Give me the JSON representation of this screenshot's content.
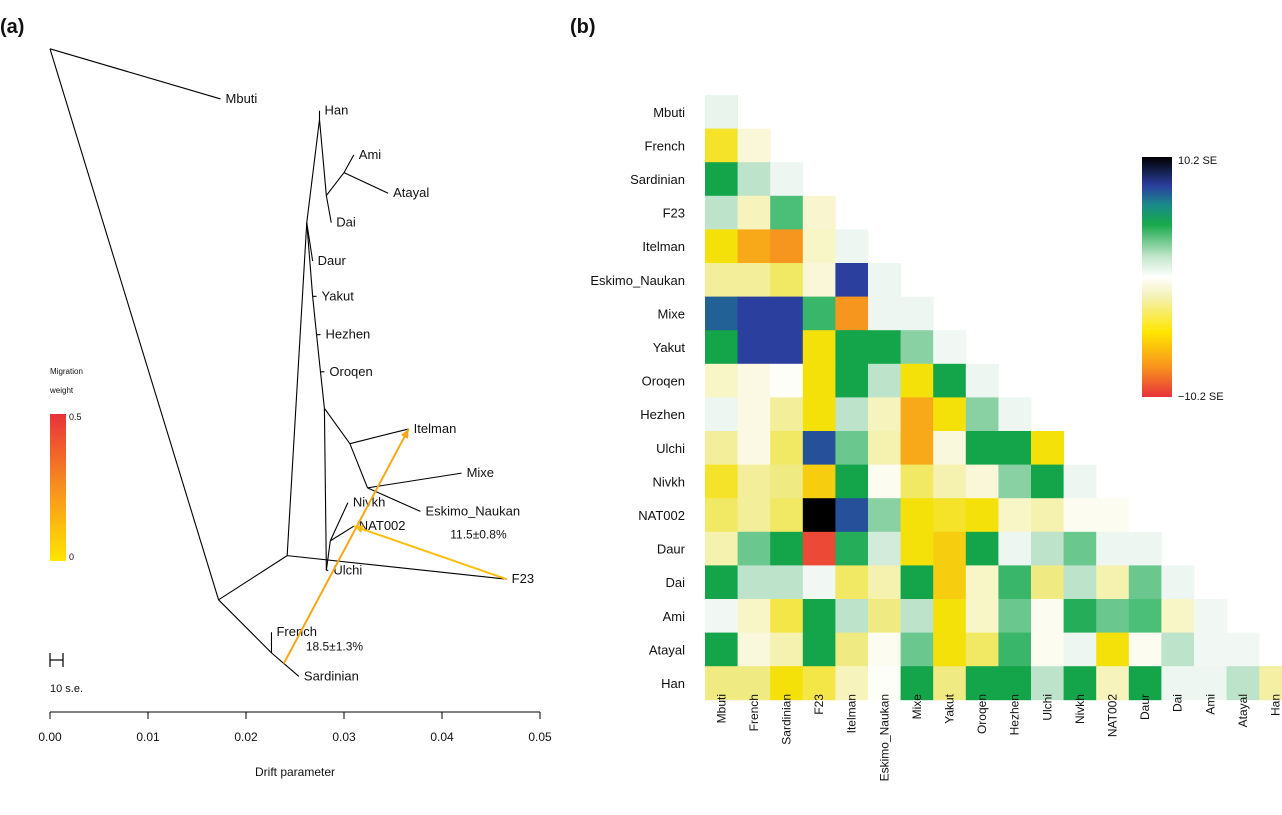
{
  "panels": {
    "a_label": "a",
    "b_label": "b"
  },
  "chart_data": [
    {
      "type": "tree",
      "panel": "a",
      "xlabel": "Drift parameter",
      "xlim": [
        0,
        0.05
      ],
      "xticks": [
        "0.00",
        "0.01",
        "0.02",
        "0.03",
        "0.04",
        "0.05"
      ],
      "scale_bar_label": "10 s.e.",
      "migration_legend": {
        "title_line1": "Migration",
        "title_line2": "weight",
        "max_label": "0.5",
        "min_label": "0",
        "color_low": "#ffe600",
        "color_high": "#e8323a"
      },
      "nodes": [
        {
          "id": "root",
          "x": 0.0,
          "y": 0.945
        },
        {
          "id": "Mbuti",
          "x": 0.0174,
          "y": 0.86,
          "label": "Mbuti"
        },
        {
          "id": "n1",
          "x": 0.0172,
          "y": 0.01
        },
        {
          "id": "nEur",
          "x": 0.0226,
          "y": -0.08
        },
        {
          "id": "French",
          "x": 0.0226,
          "y": -0.045,
          "label": "French"
        },
        {
          "id": "Sardinian",
          "x": 0.0254,
          "y": -0.12,
          "label": "Sardinian"
        },
        {
          "id": "nA",
          "x": 0.0242,
          "y": 0.085
        },
        {
          "id": "F23",
          "x": 0.0466,
          "y": 0.045,
          "label": "F23"
        },
        {
          "id": "nB",
          "x": 0.0262,
          "y": 0.65
        },
        {
          "id": "nEA",
          "x": 0.0275,
          "y": 0.825
        },
        {
          "id": "Han",
          "x": 0.0275,
          "y": 0.84,
          "label": "Han"
        },
        {
          "id": "nDai",
          "x": 0.0282,
          "y": 0.696
        },
        {
          "id": "nAmi",
          "x": 0.03,
          "y": 0.735
        },
        {
          "id": "Ami",
          "x": 0.031,
          "y": 0.765,
          "label": "Ami"
        },
        {
          "id": "Atayal",
          "x": 0.0345,
          "y": 0.7,
          "label": "Atayal"
        },
        {
          "id": "Dai",
          "x": 0.0287,
          "y": 0.65,
          "label": "Dai"
        },
        {
          "id": "Daur",
          "x": 0.0268,
          "y": 0.585,
          "label": "Daur"
        },
        {
          "id": "nC",
          "x": 0.0268,
          "y": 0.525
        },
        {
          "id": "Yakut",
          "x": 0.0272,
          "y": 0.525,
          "label": "Yakut"
        },
        {
          "id": "nD",
          "x": 0.0272,
          "y": 0.46
        },
        {
          "id": "Hezhen",
          "x": 0.0276,
          "y": 0.46,
          "label": "Hezhen"
        },
        {
          "id": "nE",
          "x": 0.0276,
          "y": 0.397
        },
        {
          "id": "Oroqen",
          "x": 0.028,
          "y": 0.397,
          "label": "Oroqen"
        },
        {
          "id": "nF",
          "x": 0.028,
          "y": 0.335
        },
        {
          "id": "nAm",
          "x": 0.0306,
          "y": 0.275
        },
        {
          "id": "Itelman",
          "x": 0.0366,
          "y": 0.3,
          "label": "Itelman"
        },
        {
          "id": "nMixe",
          "x": 0.0324,
          "y": 0.2
        },
        {
          "id": "Mixe",
          "x": 0.042,
          "y": 0.225,
          "label": "Mixe"
        },
        {
          "id": "Eskimo_Naukan",
          "x": 0.0378,
          "y": 0.16,
          "label": "Eskimo_Naukan"
        },
        {
          "id": "nG",
          "x": 0.0282,
          "y": 0.06
        },
        {
          "id": "Ulchi",
          "x": 0.0284,
          "y": 0.06,
          "label": "Ulchi"
        },
        {
          "id": "nH",
          "x": 0.0286,
          "y": 0.11
        },
        {
          "id": "Nivkh",
          "x": 0.0304,
          "y": 0.175,
          "label": "Nivkh"
        },
        {
          "id": "NAT002",
          "x": 0.031,
          "y": 0.135,
          "label": "NAT002"
        }
      ],
      "edges": [
        [
          "root",
          "Mbuti"
        ],
        [
          "root",
          "n1"
        ],
        [
          "n1",
          "nEur"
        ],
        [
          "nEur",
          "French"
        ],
        [
          "nEur",
          "Sardinian"
        ],
        [
          "n1",
          "nA"
        ],
        [
          "nA",
          "F23"
        ],
        [
          "nA",
          "nB"
        ],
        [
          "nB",
          "nEA"
        ],
        [
          "nEA",
          "Han"
        ],
        [
          "nEA",
          "nDai"
        ],
        [
          "nDai",
          "nAmi"
        ],
        [
          "nAmi",
          "Ami"
        ],
        [
          "nAmi",
          "Atayal"
        ],
        [
          "nDai",
          "Dai"
        ],
        [
          "nB",
          "Daur"
        ],
        [
          "nB",
          "nC"
        ],
        [
          "nC",
          "Yakut"
        ],
        [
          "nC",
          "nD"
        ],
        [
          "nD",
          "Hezhen"
        ],
        [
          "nD",
          "nE"
        ],
        [
          "nE",
          "Oroqen"
        ],
        [
          "nE",
          "nF"
        ],
        [
          "nF",
          "nAm"
        ],
        [
          "nAm",
          "Itelman"
        ],
        [
          "nAm",
          "nMixe"
        ],
        [
          "nMixe",
          "Mixe"
        ],
        [
          "nMixe",
          "Eskimo_Naukan"
        ],
        [
          "nF",
          "nG"
        ],
        [
          "nG",
          "Ulchi"
        ],
        [
          "nG",
          "nH"
        ],
        [
          "nH",
          "Nivkh"
        ],
        [
          "nH",
          "NAT002"
        ]
      ],
      "migrations": [
        {
          "from": "Sardinian",
          "to": "Itelman",
          "weight": 0.185,
          "label": "18.5±1.3%",
          "from_frac": 0.55,
          "to_frac": 0.0
        },
        {
          "from": "F23",
          "to": "NAT002",
          "weight": 0.115,
          "label": "11.5±0.8%",
          "from_frac": 0.0,
          "to_frac": 0.0
        }
      ]
    },
    {
      "type": "heatmap",
      "panel": "b",
      "populations": [
        "Mbuti",
        "French",
        "Sardinian",
        "F23",
        "Itelman",
        "Eskimo_Naukan",
        "Mixe",
        "Yakut",
        "Oroqen",
        "Hezhen",
        "Ulchi",
        "Nivkh",
        "NAT002",
        "Daur",
        "Dai",
        "Ami",
        "Atayal",
        "Han"
      ],
      "colorbar": {
        "max_label": "10.2 SE",
        "min_label": "−10.2 SE",
        "vmin": -10.2,
        "vmax": 10.2
      },
      "values": [
        [
          0.5
        ],
        [
          -4,
          -0.6
        ],
        [
          5,
          1.5,
          0.4
        ],
        [
          1.5,
          -1.2,
          3.5,
          -0.8
        ],
        [
          -4.5,
          -6,
          -6.5,
          -1,
          0.4
        ],
        [
          -2,
          -2,
          -3,
          -0.6,
          8.5,
          0.4
        ],
        [
          7.5,
          8.5,
          8.5,
          4,
          -6.5,
          0.4,
          0.4
        ],
        [
          5,
          8.5,
          8.5,
          -4.5,
          5,
          5,
          2.5,
          0.3
        ],
        [
          -1,
          -0.4,
          -0.1,
          -4.5,
          5,
          1.5,
          -4.5,
          5,
          0.4
        ],
        [
          0.4,
          -0.4,
          -2,
          -4.5,
          1.5,
          -1.2,
          -6,
          -4.5,
          2.5,
          0.4
        ],
        [
          -2,
          -0.4,
          -3,
          8,
          3,
          -1.5,
          -6,
          -0.5,
          5,
          5,
          -4.5
        ],
        [
          -4,
          -2,
          -2.5,
          -5,
          5,
          -0.2,
          -3,
          -1.5,
          -0.6,
          2.5,
          5,
          0.4
        ],
        [
          -3,
          -2,
          -3,
          10.2,
          8,
          2.5,
          -4.5,
          -4,
          -4.5,
          -1,
          -1.5,
          -0.2,
          -0.2
        ],
        [
          -1.5,
          3,
          5,
          -9,
          4.5,
          1,
          -4.5,
          -5,
          5,
          0.4,
          1.5,
          3,
          0.4,
          0.4
        ],
        [
          5,
          1.5,
          1.5,
          0.3,
          -3,
          -1.5,
          5,
          -5,
          -1,
          4,
          -2.5,
          1.5,
          -1.5,
          3,
          0.4
        ],
        [
          0.3,
          -1,
          -3.5,
          5,
          1.5,
          -2.5,
          1.5,
          -4.5,
          -1,
          3,
          -0.2,
          4.5,
          3,
          3.5,
          -1,
          0.3
        ],
        [
          5,
          -0.5,
          -1.5,
          5,
          -2.5,
          -0.2,
          3,
          -4.5,
          -3,
          4,
          -0.2,
          0.4,
          -4.5,
          -0.2,
          1.5,
          0.3,
          0.3
        ],
        [
          -2.5,
          -2.5,
          -4.5,
          -3.5,
          -1.2,
          -0.1,
          5,
          -2.5,
          5,
          5,
          1.5,
          5,
          -1.2,
          5,
          0.4,
          0.4,
          1.5,
          -1.8
        ]
      ]
    }
  ]
}
